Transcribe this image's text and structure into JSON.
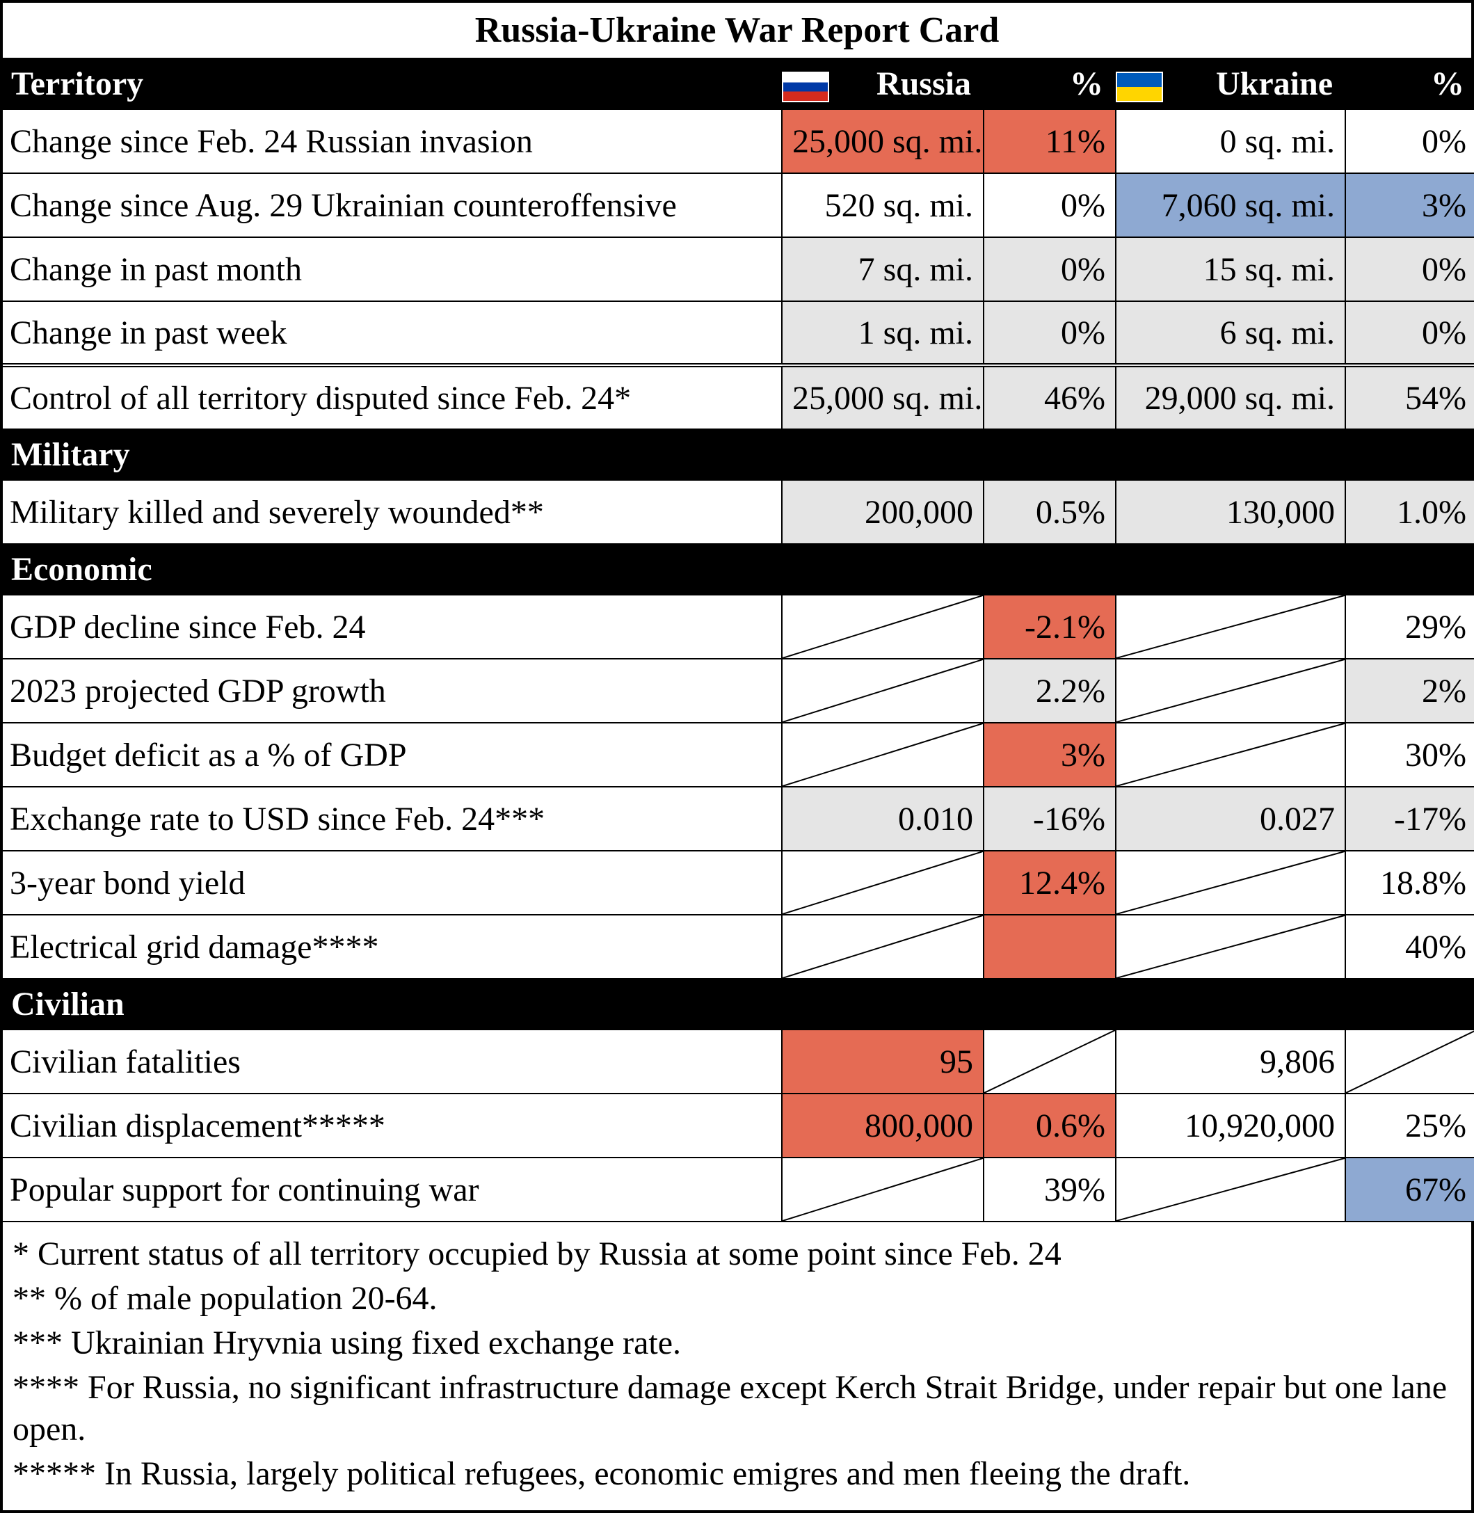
{
  "title": "Russia-Ukraine War Report Card",
  "colors": {
    "highlight_red": "#e56b54",
    "highlight_blue": "#8ea9d2",
    "highlight_grey": "#e5e5e5",
    "white": "#ffffff"
  },
  "columns": {
    "russia_label": "Russia",
    "ukraine_label": "Ukraine",
    "pct_label": "%"
  },
  "sections": [
    {
      "name": "Territory",
      "show_headers": true,
      "rows": [
        {
          "label": "Change since Feb. 24 Russian invasion",
          "rv": "25,000 sq. mi.",
          "rp": "11%",
          "uv": "0 sq. mi.",
          "up": "0%",
          "rv_bg": "red",
          "rp_bg": "red",
          "uv_bg": "white",
          "up_bg": "white"
        },
        {
          "label": "Change since Aug. 29 Ukrainian counteroffensive",
          "rv": "520 sq. mi.",
          "rp": "0%",
          "uv": "7,060 sq. mi.",
          "up": "3%",
          "rv_bg": "white",
          "rp_bg": "white",
          "uv_bg": "blue",
          "up_bg": "blue"
        },
        {
          "label": "Change in past month",
          "rv": "7 sq. mi.",
          "rp": "0%",
          "uv": "15 sq. mi.",
          "up": "0%",
          "rv_bg": "grey",
          "rp_bg": "grey",
          "uv_bg": "grey",
          "up_bg": "grey"
        },
        {
          "label": "Change in past week",
          "rv": "1 sq. mi.",
          "rp": "0%",
          "uv": "6 sq. mi.",
          "up": "0%",
          "rv_bg": "grey",
          "rp_bg": "grey",
          "uv_bg": "grey",
          "up_bg": "grey"
        },
        {
          "label": "Control of all territory disputed since Feb. 24*",
          "rv": "25,000 sq. mi.",
          "rp": "46%",
          "uv": "29,000 sq. mi.",
          "up": "54%",
          "rv_bg": "grey",
          "rp_bg": "grey",
          "uv_bg": "grey",
          "up_bg": "grey",
          "double_top": true
        }
      ]
    },
    {
      "name": "Military",
      "show_headers": false,
      "rows": [
        {
          "label": "Military killed and severely wounded**",
          "rv": "200,000",
          "rp": "0.5%",
          "uv": "130,000",
          "up": "1.0%",
          "rv_bg": "grey",
          "rp_bg": "grey",
          "uv_bg": "grey",
          "up_bg": "grey"
        }
      ]
    },
    {
      "name": "Economic",
      "show_headers": false,
      "rows": [
        {
          "label": "GDP decline since Feb. 24",
          "rv": "DIAG",
          "rp": "-2.1%",
          "uv": "DIAG",
          "up": "29%",
          "rp_bg": "red",
          "up_bg": "white"
        },
        {
          "label": "2023 projected GDP growth",
          "rv": "DIAG",
          "rp": "2.2%",
          "uv": "DIAG",
          "up": "2%",
          "rp_bg": "grey",
          "up_bg": "grey"
        },
        {
          "label": "Budget deficit as a % of GDP",
          "rv": "DIAG",
          "rp": "3%",
          "uv": "DIAG",
          "up": "30%",
          "rp_bg": "red",
          "up_bg": "white"
        },
        {
          "label": "Exchange rate to USD since Feb. 24***",
          "rv": "0.010",
          "rp": "-16%",
          "uv": "0.027",
          "up": "-17%",
          "rv_bg": "grey",
          "rp_bg": "grey",
          "uv_bg": "grey",
          "up_bg": "grey"
        },
        {
          "label": "3-year bond yield",
          "rv": "DIAG",
          "rp": "12.4%",
          "uv": "DIAG",
          "up": "18.8%",
          "rp_bg": "red",
          "up_bg": "white"
        },
        {
          "label": "Electrical grid damage****",
          "rv": "DIAG",
          "rp": "",
          "uv": "DIAG",
          "up": "40%",
          "rp_bg": "red",
          "up_bg": "white"
        }
      ]
    },
    {
      "name": "Civilian",
      "show_headers": false,
      "rows": [
        {
          "label": "Civilian fatalities",
          "rv": "95",
          "rp": "DIAG",
          "uv": "9,806",
          "up": "DIAG",
          "rv_bg": "red",
          "uv_bg": "white"
        },
        {
          "label": "Civilian displacement*****",
          "rv": "800,000",
          "rp": "0.6%",
          "uv": "10,920,000",
          "up": "25%",
          "rv_bg": "red",
          "rp_bg": "red",
          "uv_bg": "white",
          "up_bg": "white"
        },
        {
          "label": "Popular support for continuing war",
          "rv": "DIAG",
          "rp": "39%",
          "uv": "DIAG",
          "up": "67%",
          "rp_bg": "white",
          "up_bg": "blue"
        }
      ]
    }
  ],
  "footnotes": [
    "* Current status of all territory occupied by Russia at some point since Feb. 24",
    "** % of male population 20-64.",
    "*** Ukrainian Hryvnia using fixed exchange rate.",
    "**** For Russia, no significant infrastructure damage except Kerch Strait Bridge, under repair but one lane open.",
    "***** In Russia, largely political refugees, economic emigres and men fleeing the draft."
  ]
}
